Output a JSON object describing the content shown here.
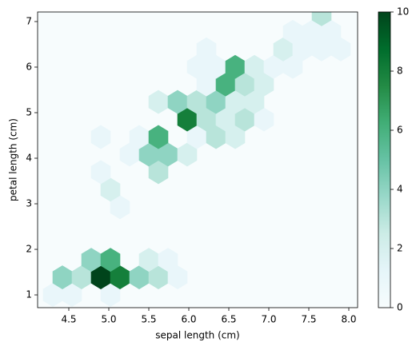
{
  "chart_data": {
    "type": "hexbin",
    "xlabel": "sepal length (cm)",
    "ylabel": "petal length (cm)",
    "x": [
      4.3,
      4.54,
      5.02,
      4.42,
      4.66,
      4.9,
      5.14,
      5.38,
      5.62,
      5.86,
      4.78,
      5.02,
      5.5,
      5.74,
      5.14,
      5.02,
      4.9,
      5.62,
      5.26,
      5.5,
      5.74,
      5.98,
      4.9,
      5.38,
      5.62,
      6.1,
      6.34,
      6.58,
      5.98,
      6.22,
      6.46,
      6.7,
      6.94,
      5.62,
      5.86,
      6.1,
      6.34,
      6.58,
      6.82,
      6.22,
      6.46,
      6.7,
      6.94,
      6.1,
      6.34,
      6.58,
      6.82,
      7.06,
      7.3,
      6.22,
      7.18,
      7.42,
      7.66,
      7.9,
      7.3,
      7.54,
      7.78,
      7.66
    ],
    "y": [
      1.0,
      1.0,
      1.0,
      1.385,
      1.385,
      1.385,
      1.385,
      1.385,
      1.385,
      1.385,
      1.77,
      1.77,
      1.77,
      1.77,
      2.925,
      3.31,
      3.695,
      3.695,
      4.08,
      4.08,
      4.08,
      4.08,
      4.465,
      4.465,
      4.465,
      4.465,
      4.465,
      4.465,
      4.85,
      4.85,
      4.85,
      4.85,
      4.85,
      5.235,
      5.235,
      5.235,
      5.235,
      5.235,
      5.235,
      5.62,
      5.62,
      5.62,
      5.62,
      6.005,
      6.005,
      6.005,
      6.005,
      6.005,
      6.005,
      6.39,
      6.39,
      6.39,
      6.39,
      6.39,
      6.775,
      6.775,
      6.775,
      7.16
    ],
    "counts": [
      1,
      1,
      1,
      4,
      3,
      10,
      8,
      4,
      3,
      1,
      4,
      6,
      2,
      1,
      1,
      2,
      1,
      3,
      1,
      4,
      4,
      2,
      1,
      1,
      6,
      1,
      3,
      2,
      8,
      3,
      2,
      3,
      1,
      2,
      4,
      3,
      4,
      2,
      2,
      1,
      6,
      3,
      2,
      1,
      1,
      6,
      2,
      1,
      1,
      1,
      2,
      1,
      1,
      1,
      1,
      1,
      1,
      3
    ],
    "xlim": [
      4.11,
      8.11
    ],
    "ylim": [
      0.72,
      7.21
    ],
    "xticks": [
      4.5,
      {
        "value": 5,
        "label": "5.0"
      },
      5.5,
      {
        "value": 6,
        "label": "6.0"
      },
      6.5,
      {
        "value": 7,
        "label": "7.0"
      },
      7.5,
      {
        "value": 8,
        "label": "8.0"
      }
    ],
    "yticks": [
      1,
      2,
      3,
      4,
      5,
      6,
      7
    ],
    "colorbar": {
      "clim": [
        0,
        10
      ],
      "ticks": [
        0,
        2,
        4,
        6,
        8,
        10
      ],
      "colors": [
        "#f7fcfd",
        "#e5f5f9",
        "#ccece6",
        "#99d8c9",
        "#66c2a4",
        "#41ae76",
        "#238b45",
        "#006d2c",
        "#00441b"
      ]
    }
  }
}
